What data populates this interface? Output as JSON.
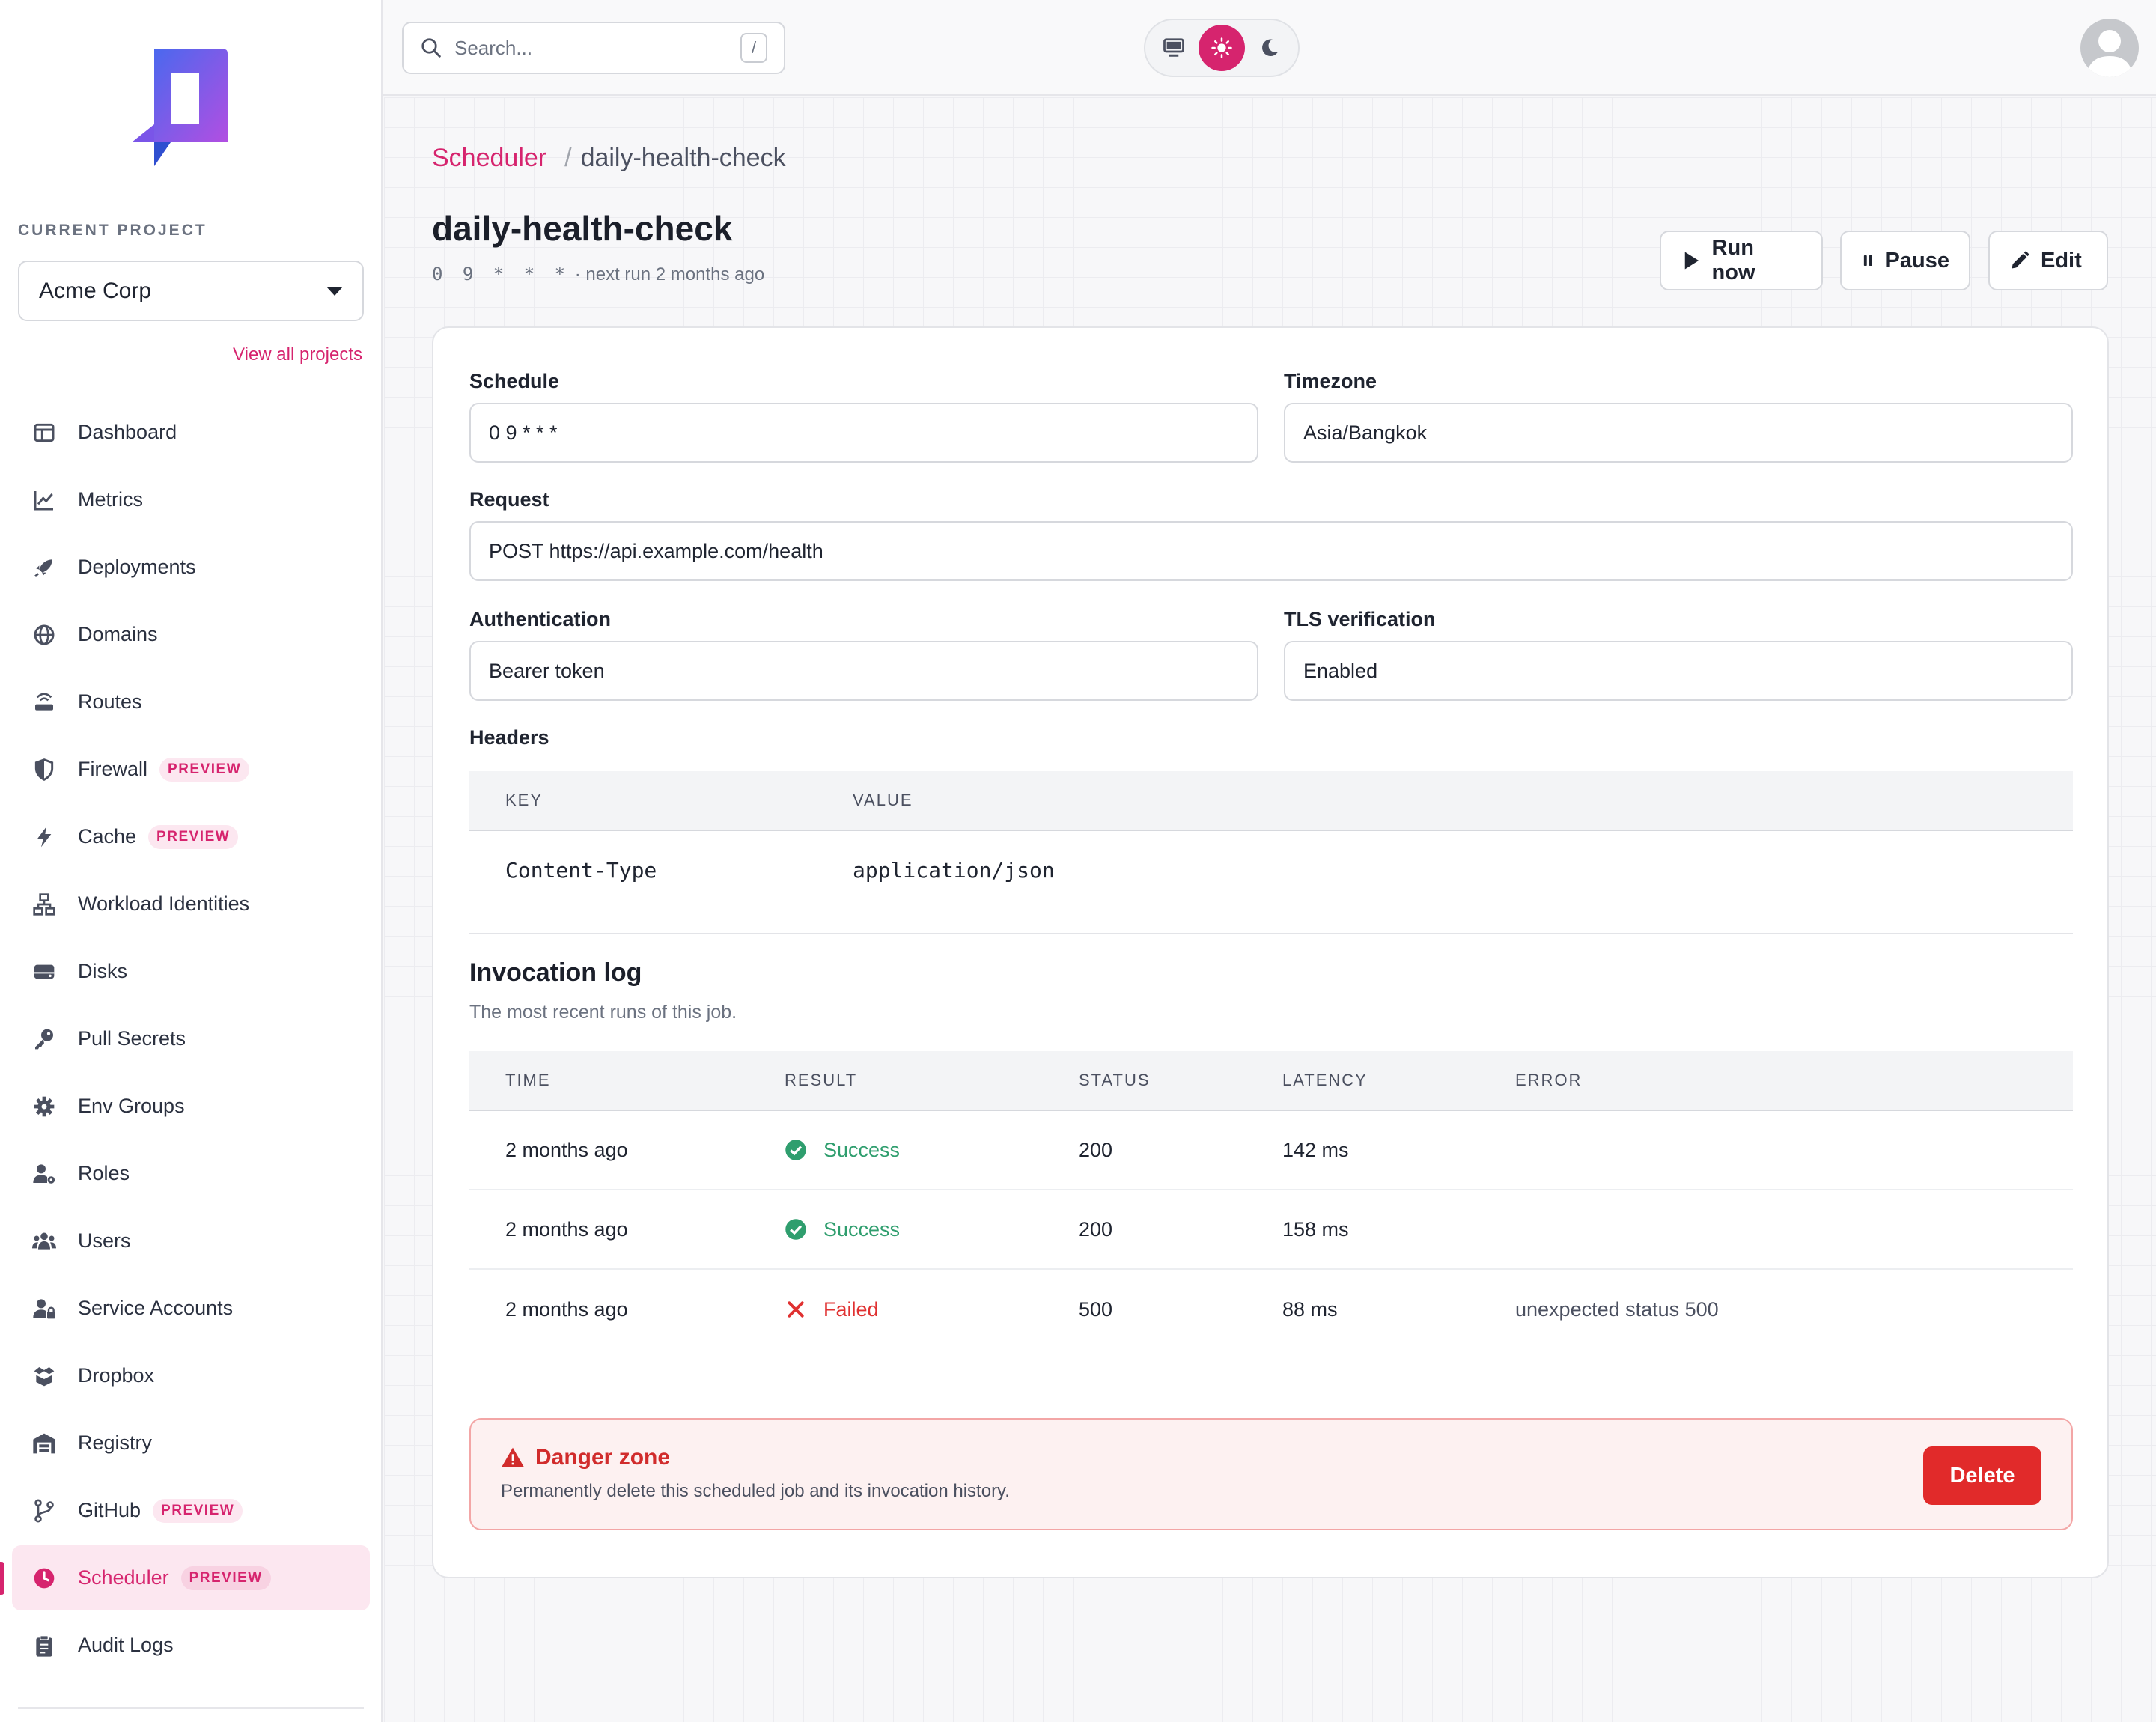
{
  "project": {
    "label": "CURRENT PROJECT",
    "selected": "Acme Corp",
    "view_all": "View all projects"
  },
  "sidebar": {
    "items": [
      {
        "label": "Dashboard",
        "icon": "dashboard-icon"
      },
      {
        "label": "Metrics",
        "icon": "chart-line-icon"
      },
      {
        "label": "Deployments",
        "icon": "rocket-icon"
      },
      {
        "label": "Domains",
        "icon": "globe-icon"
      },
      {
        "label": "Routes",
        "icon": "router-icon"
      },
      {
        "label": "Firewall",
        "icon": "shield-icon",
        "badge": "PREVIEW"
      },
      {
        "label": "Cache",
        "icon": "bolt-icon",
        "badge": "PREVIEW"
      },
      {
        "label": "Workload Identities",
        "icon": "network-icon"
      },
      {
        "label": "Disks",
        "icon": "disk-icon"
      },
      {
        "label": "Pull Secrets",
        "icon": "key-icon"
      },
      {
        "label": "Env Groups",
        "icon": "gear-icon"
      },
      {
        "label": "Roles",
        "icon": "user-gear-icon"
      },
      {
        "label": "Users",
        "icon": "users-icon"
      },
      {
        "label": "Service Accounts",
        "icon": "user-lock-icon"
      },
      {
        "label": "Dropbox",
        "icon": "box-icon"
      },
      {
        "label": "Registry",
        "icon": "warehouse-icon"
      },
      {
        "label": "GitHub",
        "icon": "branch-icon",
        "badge": "PREVIEW"
      },
      {
        "label": "Scheduler",
        "icon": "clock-icon",
        "badge": "PREVIEW",
        "active": true
      },
      {
        "label": "Audit Logs",
        "icon": "clipboard-icon"
      }
    ]
  },
  "topbar": {
    "search_placeholder": "Search...",
    "search_shortcut": "/",
    "theme_modes": [
      "system",
      "light",
      "dark"
    ],
    "theme_selected": "light"
  },
  "breadcrumb": {
    "parent": "Scheduler",
    "separator": "/",
    "current": "daily-health-check"
  },
  "job": {
    "title": "daily-health-check",
    "cron": "0 9 * * *",
    "next_run": "· next run 2 months ago"
  },
  "actions": {
    "run_now": "Run now",
    "pause": "Pause",
    "edit": "Edit"
  },
  "form": {
    "schedule_label": "Schedule",
    "schedule_value": "0 9 * * *",
    "timezone_label": "Timezone",
    "timezone_value": "Asia/Bangkok",
    "request_label": "Request",
    "request_value": "POST https://api.example.com/health",
    "auth_label": "Authentication",
    "auth_value": "Bearer token",
    "tls_label": "TLS verification",
    "tls_value": "Enabled",
    "headers_label": "Headers"
  },
  "headers_table": {
    "columns": [
      "KEY",
      "VALUE"
    ],
    "rows": [
      {
        "key": "Content-Type",
        "value": "application/json"
      }
    ]
  },
  "invocation_log": {
    "title": "Invocation log",
    "subtitle": "The most recent runs of this job.",
    "columns": [
      "TIME",
      "RESULT",
      "STATUS",
      "LATENCY",
      "ERROR"
    ],
    "rows": [
      {
        "time": "2 months ago",
        "result": "Success",
        "status": "200",
        "latency": "142 ms",
        "error": ""
      },
      {
        "time": "2 months ago",
        "result": "Success",
        "status": "200",
        "latency": "158 ms",
        "error": ""
      },
      {
        "time": "2 months ago",
        "result": "Failed",
        "status": "500",
        "latency": "88 ms",
        "error": "unexpected status 500"
      }
    ]
  },
  "danger_zone": {
    "title": "Danger zone",
    "text": "Permanently delete this scheduled job and its invocation history.",
    "delete_label": "Delete"
  },
  "colors": {
    "accent": "#d6246e",
    "success": "#2f9e6e",
    "danger": "#e12a2a"
  }
}
